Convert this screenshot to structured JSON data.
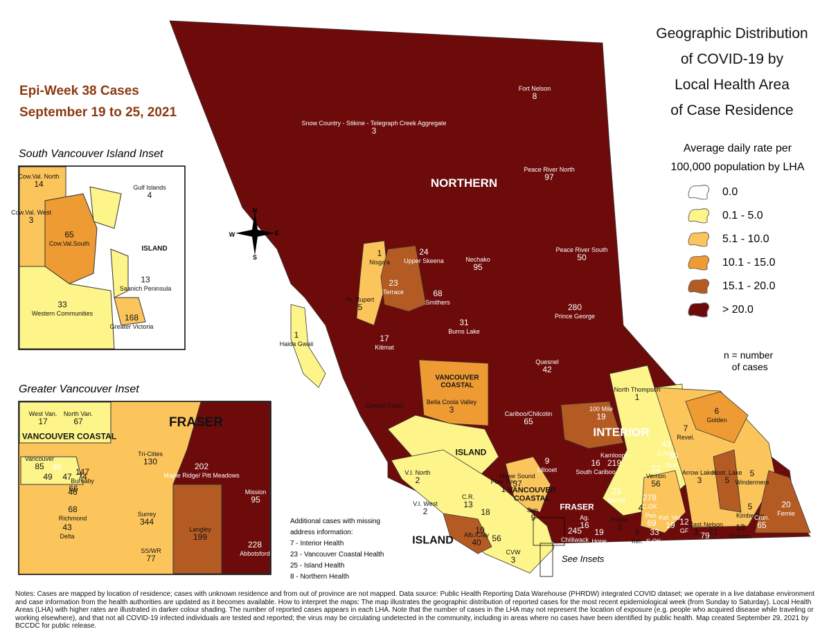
{
  "title_lines": [
    "Geographic Distribution",
    "of COVID-19 by",
    "Local Health Area",
    "of Case Residence"
  ],
  "subtitle_lines": [
    "Epi-Week 38 Cases",
    "September 19 to 25, 2021"
  ],
  "legend": {
    "title_lines": [
      "Average daily rate per",
      "100,000 population by LHA"
    ],
    "items": [
      {
        "label": "0.0",
        "color": "#ffffff"
      },
      {
        "label": "0.1 - 5.0",
        "color": "#fdf58a"
      },
      {
        "label": "5.1 - 10.0",
        "color": "#fcc55c"
      },
      {
        "label": "10.1 - 15.0",
        "color": "#ee9b33"
      },
      {
        "label": "15.1 - 20.0",
        "color": "#b45b24"
      },
      {
        "label": "> 20.0",
        "color": "#6d0b0b"
      }
    ],
    "note": "n = number\n   of cases"
  },
  "inset_titles": [
    "South Vancouver Island Inset",
    "Greater Vancouver Inset"
  ],
  "compass": [
    "N",
    "E",
    "S",
    "W"
  ],
  "see_insets": "See Insets",
  "region_labels": [
    "NORTHERN",
    "INTERIOR",
    "FRASER",
    "VANCOUVER COASTAL",
    "VANCOUVER COASTAL",
    "ISLAND",
    "ISLAND",
    "ISLAND",
    "FRASER",
    "VANCOUVER COASTAL"
  ],
  "areas": [
    {
      "name": "Fort Nelson",
      "cases": 8
    },
    {
      "name": "Snow Country - Stikine - Telegraph Creek Aggregate",
      "cases": 3
    },
    {
      "name": "Peace River North",
      "cases": 97
    },
    {
      "name": "Peace River South",
      "cases": 50
    },
    {
      "name": "Nechako",
      "cases": 95
    },
    {
      "name": "Upper Skeena",
      "cases": 24
    },
    {
      "name": "Nisga'a",
      "cases": 1
    },
    {
      "name": "Terrace",
      "cases": 23
    },
    {
      "name": "Smithers",
      "cases": 68
    },
    {
      "name": "Pr. Rupert",
      "cases": 5
    },
    {
      "name": "Prince George",
      "cases": 280
    },
    {
      "name": "Burns Lake",
      "cases": 31
    },
    {
      "name": "Kitimat",
      "cases": 17
    },
    {
      "name": "Haida Gwaii",
      "cases": 1
    },
    {
      "name": "Quesnel",
      "cases": 42
    },
    {
      "name": "Central Coast"
    },
    {
      "name": "Bella Coola Valley",
      "cases": 3
    },
    {
      "name": "Cariboo/Chilcotin",
      "cases": 65
    },
    {
      "name": "100 Mile",
      "cases": 19
    },
    {
      "name": "North Thompson",
      "cases": 1
    },
    {
      "name": "Golden",
      "cases": 6
    },
    {
      "name": "Revel.",
      "cases": 7
    },
    {
      "name": "Windermere",
      "cases": 5
    },
    {
      "name": "Lillooet",
      "cases": 9
    },
    {
      "name": "Kamloops",
      "cases": 219
    },
    {
      "name": "South Cariboo",
      "cases": 16
    },
    {
      "name": "S.Arm.",
      "cases": 43
    },
    {
      "name": "End.",
      "cases": 30
    },
    {
      "name": "Vernon",
      "cases": 56
    },
    {
      "cases": 22
    },
    {
      "name": "Arrow Lakes",
      "cases": 3
    },
    {
      "name": "Koot. Lake",
      "cases": 5
    },
    {
      "name": "Kimberley",
      "cases": 5
    },
    {
      "name": "Cran.",
      "cases": 65
    },
    {
      "name": "Fernie",
      "cases": 20
    },
    {
      "name": "Nelson",
      "cases": 21
    },
    {
      "name": "Creston",
      "cases": 13
    },
    {
      "name": "Cast.",
      "cases": 3
    },
    {
      "name": "Trail",
      "cases": 79
    },
    {
      "name": "Ket. Val.",
      "cases": 19
    },
    {
      "name": "GF",
      "cases": 12
    },
    {
      "name": "Pen.",
      "cases": 69
    },
    {
      "name": "Ker.",
      "cases": 5
    },
    {
      "name": "S.OK.",
      "cases": 33
    },
    {
      "name": "Prince.",
      "cases": 3
    },
    {
      "name": "C.OK",
      "cases": 278
    },
    {
      "cases": 4
    },
    {
      "name": "Merritt",
      "cases": 23
    },
    {
      "name": "Hope",
      "cases": 19
    },
    {
      "name": "Ag.",
      "cases": 16
    },
    {
      "name": "Chilliwack",
      "cases": 245
    },
    {
      "name": "Howe Sound",
      "cases": 37
    },
    {
      "name": "Sun.",
      "cases": 9
    },
    {
      "name": "Pow. Riv.",
      "cases": 1
    },
    {
      "name": "V.I. North",
      "cases": 2
    },
    {
      "name": "V.I. West",
      "cases": 2
    },
    {
      "name": "C.R.",
      "cases": 13
    },
    {
      "cases": 18
    },
    {
      "name": "Alb./Clay",
      "cases": 40
    },
    {
      "cases": 10
    },
    {
      "cases": 56
    },
    {
      "name": "CVW",
      "cases": 3
    },
    {
      "name": "Cow.Val. North",
      "cases": 14
    },
    {
      "name": "Gulf Islands",
      "cases": 4
    },
    {
      "name": "Cow.Val. West",
      "cases": 3
    },
    {
      "name": "Cow.Val.South",
      "cases": 65
    },
    {
      "name": "Saanich Peninsula",
      "cases": 13
    },
    {
      "name": "Western Communities",
      "cases": 33
    },
    {
      "name": "Greater Victoria",
      "cases": 168
    },
    {
      "name": "West Van.",
      "cases": 17
    },
    {
      "name": "North Van.",
      "cases": 67
    },
    {
      "name": "Vancouver",
      "cases": 85
    },
    {
      "cases": 98
    },
    {
      "cases": 47
    },
    {
      "cases": 74
    },
    {
      "cases": 66
    },
    {
      "cases": 49
    },
    {
      "name": "Burnaby",
      "cases": 147
    },
    {
      "cases": 46
    },
    {
      "name": "Tri-Cities",
      "cases": 130
    },
    {
      "name": "Maple Ridge/ Pitt Meadows",
      "cases": 202
    },
    {
      "name": "Mission",
      "cases": 95
    },
    {
      "name": "Richmond",
      "cases": 68
    },
    {
      "name": "Delta",
      "cases": 43
    },
    {
      "name": "Surrey",
      "cases": 344
    },
    {
      "name": "Langley",
      "cases": 199
    },
    {
      "name": "SS/WR",
      "cases": 77
    },
    {
      "name": "Abbotsford",
      "cases": 228
    }
  ],
  "additional_cases": {
    "heading": "Additional cases with missing address information:",
    "items": [
      "7 - Interior Health",
      "23 - Vancouver Coastal Health",
      "25 - Island Health",
      "8 - Northern Health"
    ]
  },
  "notes": "Notes: Cases are mapped by location of residence; cases with unknown residence and from out of province are not mapped. Data source: Public Health Reporting Data Warehouse (PHRDW) integrated COVID dataset; we operate in a live database environment and case information from the health authorities are updated as it becomes available. How to interpret the maps: The map illustrates the geographic distribution of reported cases for the most recent epidemiological week (from Sunday to Saturday). Local Health Areas (LHA) with higher rates are illustrated in darker colour shading. The number of reported cases appears in each LHA. Note that the number of cases in the LHA may not represent the location of exposure (e.g. people who acquired disease while traveling or working elsewhere), and that not all COVID-19 infected individuals are tested and reported; the virus may be circulating undetected in the community, including in areas where no cases have been identified by public health. Map created September 29, 2021 by BCCDC for public release."
}
